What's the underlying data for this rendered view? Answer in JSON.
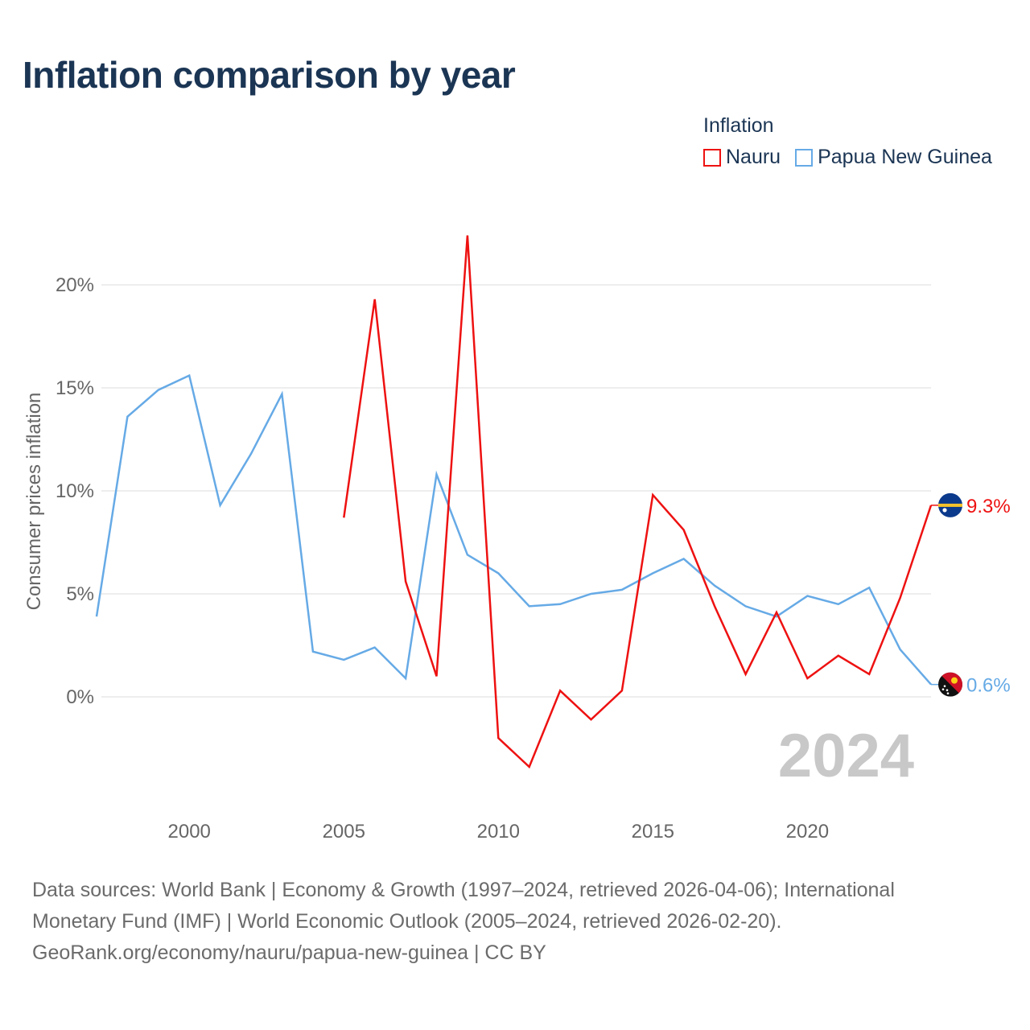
{
  "title": "Inflation comparison by year",
  "legend": {
    "title": "Inflation",
    "items": [
      {
        "name": "Nauru",
        "color": "#ee1111"
      },
      {
        "name": "Papua New Guinea",
        "color": "#66aae6"
      }
    ]
  },
  "chart_data": {
    "type": "line",
    "title": "Inflation comparison by year",
    "xlabel": "",
    "ylabel": "Consumer prices inflation",
    "xlim": [
      1997,
      2024
    ],
    "ylim": [
      -5,
      22.5
    ],
    "x_ticks": [
      2000,
      2005,
      2010,
      2015,
      2020
    ],
    "y_ticks": [
      0,
      5,
      10,
      15,
      20
    ],
    "y_tick_labels": [
      "0%",
      "5%",
      "10%",
      "15%",
      "20%"
    ],
    "grid": true,
    "year_watermark": "2024",
    "series": [
      {
        "name": "Nauru",
        "color": "#ee1111",
        "end_label": "9.3%",
        "flag": "nauru-flag",
        "points": [
          [
            2005,
            8.7
          ],
          [
            2006,
            19.3
          ],
          [
            2007,
            5.6
          ],
          [
            2008,
            1.0
          ],
          [
            2009,
            22.4
          ],
          [
            2010,
            -2.0
          ],
          [
            2011,
            -3.4
          ],
          [
            2012,
            0.3
          ],
          [
            2013,
            -1.1
          ],
          [
            2014,
            0.3
          ],
          [
            2015,
            9.8
          ],
          [
            2016,
            8.1
          ],
          [
            2017,
            4.4
          ],
          [
            2018,
            1.1
          ],
          [
            2019,
            4.1
          ],
          [
            2020,
            0.9
          ],
          [
            2021,
            2.0
          ],
          [
            2022,
            1.1
          ],
          [
            2023,
            4.8
          ],
          [
            2024,
            9.3
          ]
        ]
      },
      {
        "name": "Papua New Guinea",
        "color": "#66aae6",
        "end_label": "0.6%",
        "flag": "papua-new-guinea-flag",
        "points": [
          [
            1997,
            3.9
          ],
          [
            1998,
            13.6
          ],
          [
            1999,
            14.9
          ],
          [
            2000,
            15.6
          ],
          [
            2001,
            9.3
          ],
          [
            2002,
            11.8
          ],
          [
            2003,
            14.7
          ],
          [
            2004,
            2.2
          ],
          [
            2005,
            1.8
          ],
          [
            2006,
            2.4
          ],
          [
            2007,
            0.9
          ],
          [
            2008,
            10.8
          ],
          [
            2009,
            6.9
          ],
          [
            2010,
            6.0
          ],
          [
            2011,
            4.4
          ],
          [
            2012,
            4.5
          ],
          [
            2013,
            5.0
          ],
          [
            2014,
            5.2
          ],
          [
            2015,
            6.0
          ],
          [
            2016,
            6.7
          ],
          [
            2017,
            5.4
          ],
          [
            2018,
            4.4
          ],
          [
            2019,
            3.9
          ],
          [
            2020,
            4.9
          ],
          [
            2021,
            4.5
          ],
          [
            2022,
            5.3
          ],
          [
            2023,
            2.3
          ],
          [
            2024,
            0.6
          ]
        ]
      }
    ]
  },
  "footer": {
    "line1": "Data sources: World Bank | Economy & Growth (1997–2024, retrieved 2026-04-06); International",
    "line2": "Monetary Fund (IMF) | World Economic Outlook (2005–2024, retrieved 2026-02-20).",
    "line3": "GeoRank.org/economy/nauru/papua-new-guinea | CC BY"
  }
}
